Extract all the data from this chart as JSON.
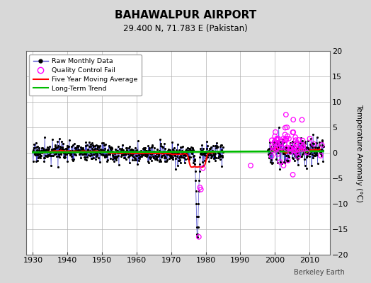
{
  "title": "BAHAWALPUR AIRPORT",
  "subtitle": "29.400 N, 71.783 E (Pakistan)",
  "ylabel": "Temperature Anomaly (°C)",
  "xlabel_credit": "Berkeley Earth",
  "xlim": [
    1928,
    2016
  ],
  "ylim": [
    -20,
    20
  ],
  "yticks": [
    -20,
    -15,
    -10,
    -5,
    0,
    5,
    10,
    15,
    20
  ],
  "xticks": [
    1930,
    1940,
    1950,
    1960,
    1970,
    1980,
    1990,
    2000,
    2010
  ],
  "bg_color": "#d8d8d8",
  "plot_bg_color": "#ffffff",
  "grid_color": "#b0b0b0",
  "raw_line_color": "#4444cc",
  "raw_dot_color": "#000000",
  "ma_color": "#ff0000",
  "trend_color": "#00bb00",
  "qc_fail_color": "#ff00ff",
  "seed": 17
}
